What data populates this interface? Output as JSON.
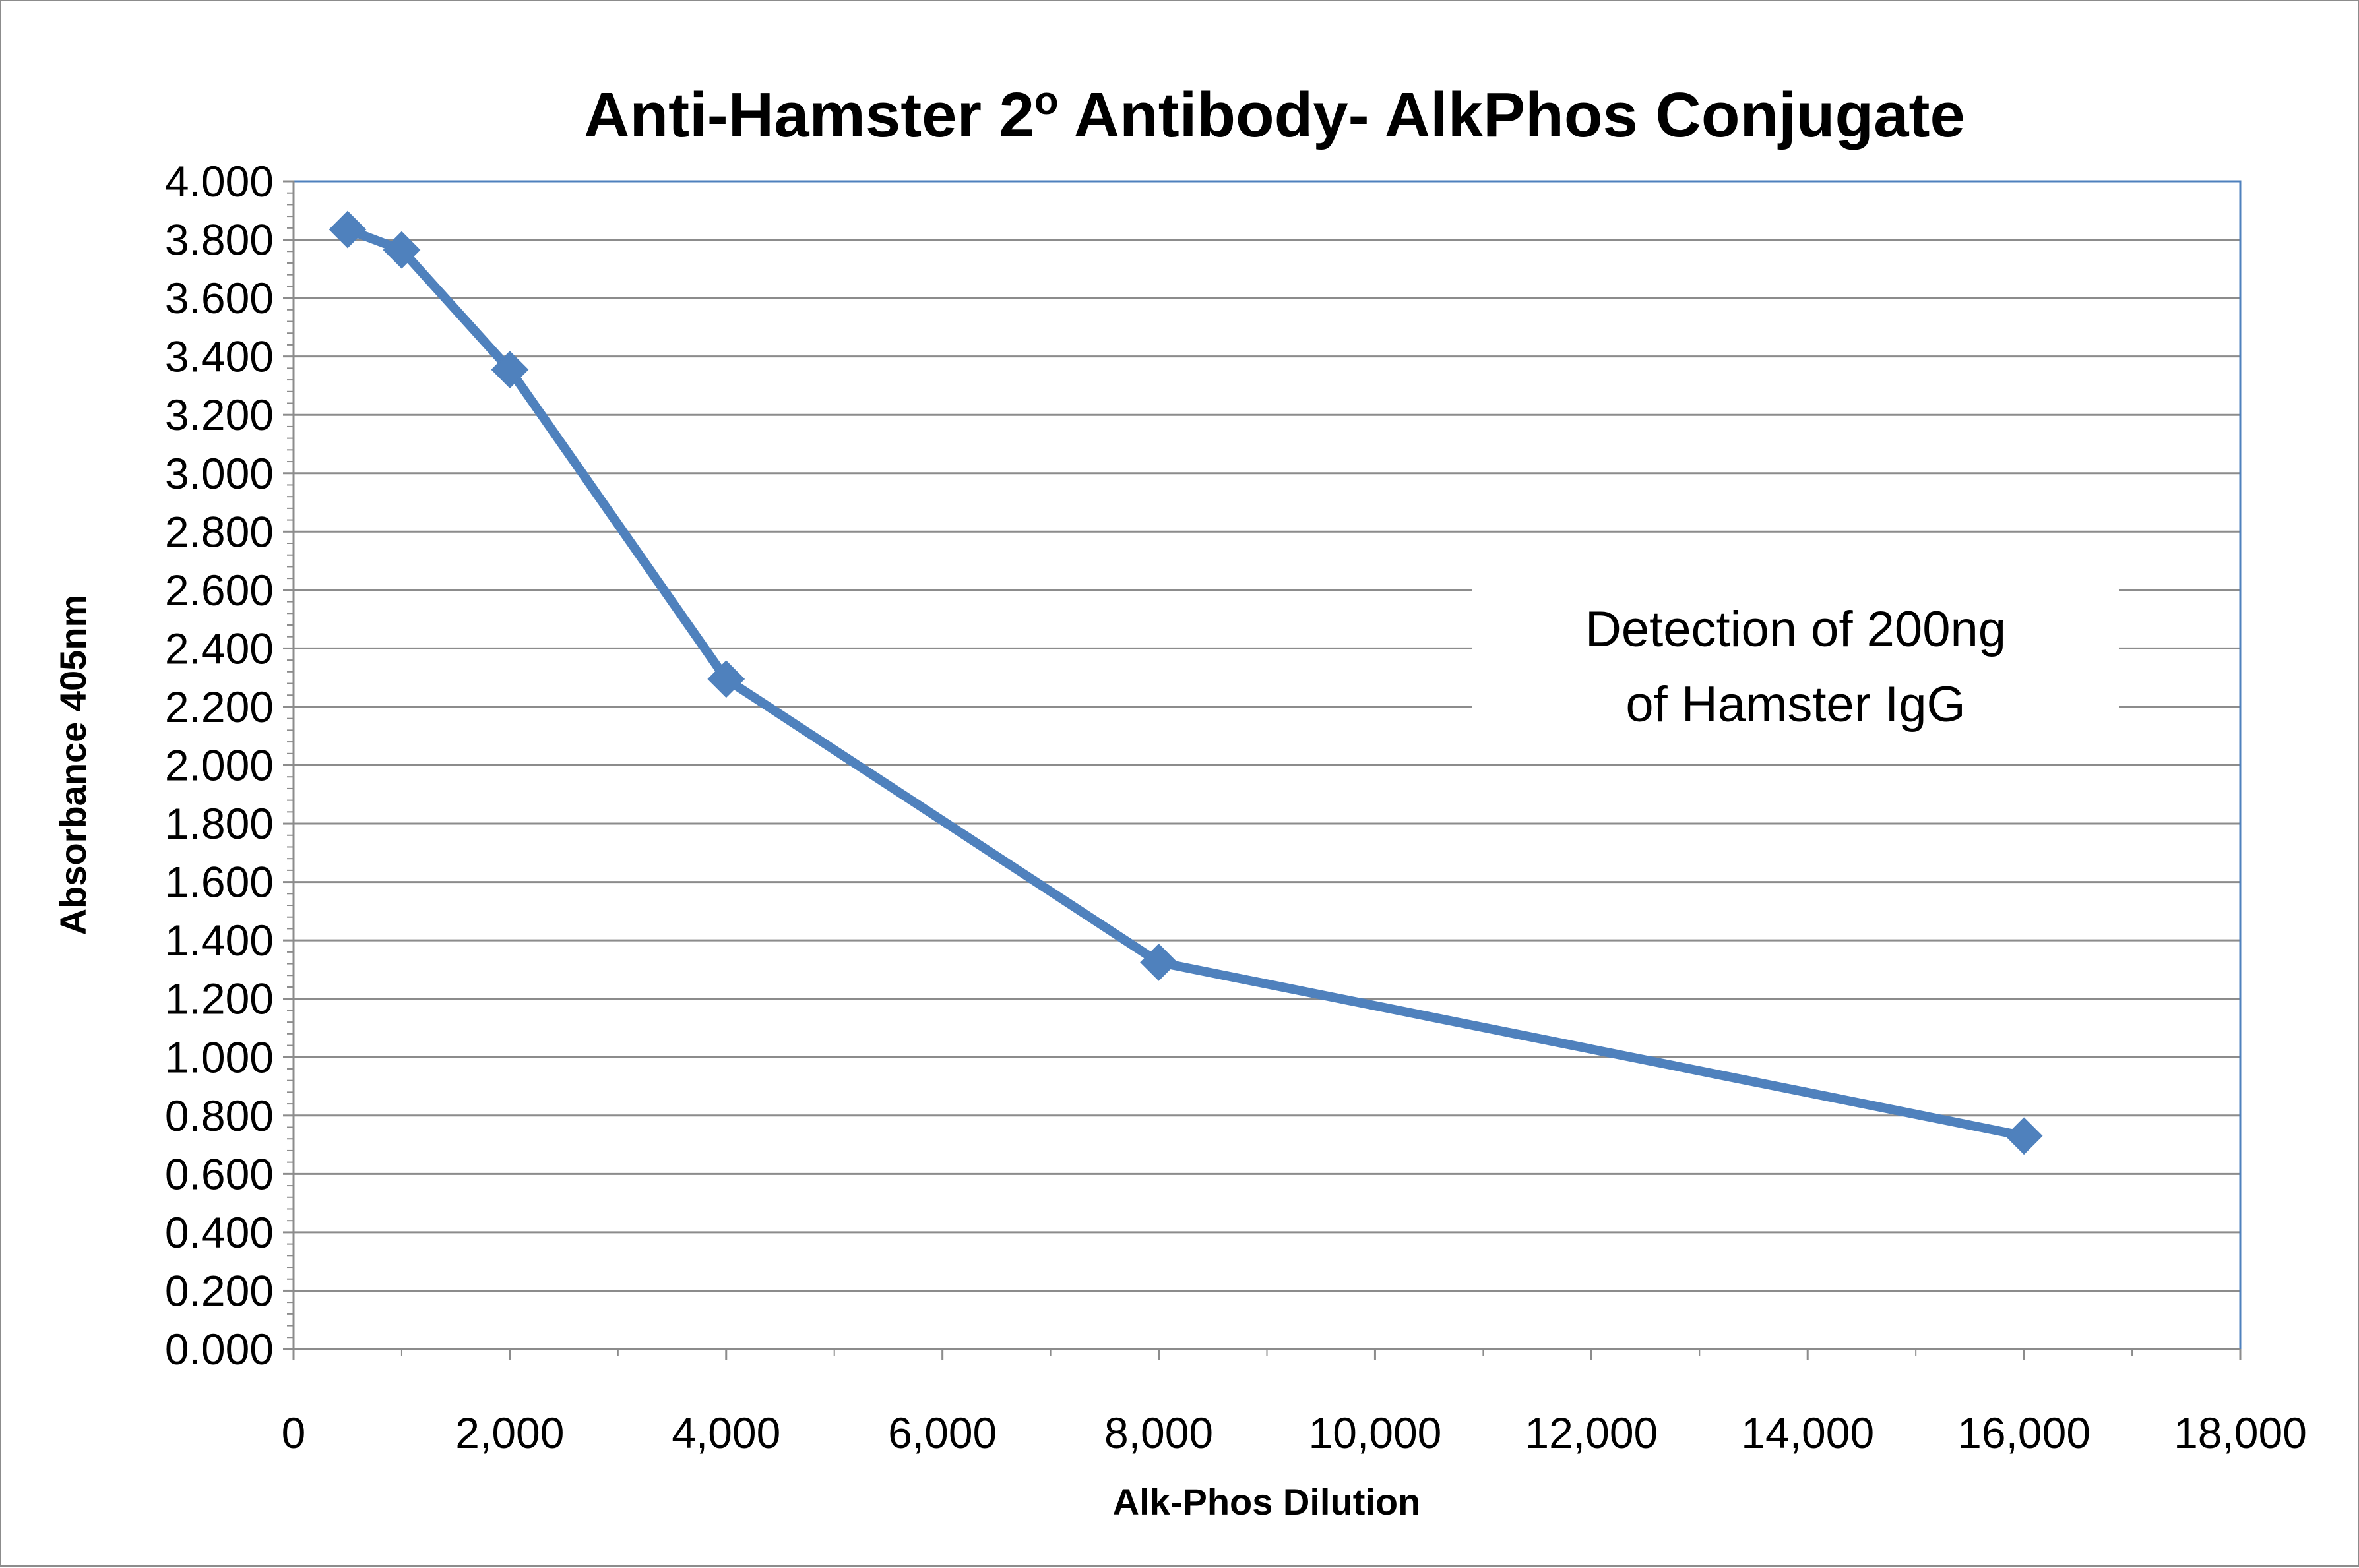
{
  "chart_data": {
    "type": "line",
    "title_main": "Anti-Hamster 2",
    "title_sup": "o",
    "title_rest": " Antibody- AlkPhos Conjugate",
    "xlabel": "Alk-Phos Dilution",
    "ylabel": "Absorbance 405nm",
    "xlim": [
      0,
      18000
    ],
    "ylim": [
      0,
      4
    ],
    "x_ticks": [
      0,
      2000,
      4000,
      6000,
      8000,
      10000,
      12000,
      14000,
      16000,
      18000
    ],
    "x_tick_labels": [
      "0",
      "2,000",
      "4,000",
      "6,000",
      "8,000",
      "10,000",
      "12,000",
      "14,000",
      "16,000",
      "18,000"
    ],
    "y_ticks": [
      0,
      0.2,
      0.4,
      0.6,
      0.8,
      1.0,
      1.2,
      1.4,
      1.6,
      1.8,
      2.0,
      2.2,
      2.4,
      2.6,
      2.8,
      3.0,
      3.2,
      3.4,
      3.6,
      3.8,
      4.0
    ],
    "y_tick_labels": [
      "0.000",
      "0.200",
      "0.400",
      "0.600",
      "0.800",
      "1.000",
      "1.200",
      "1.400",
      "1.600",
      "1.800",
      "2.000",
      "2.200",
      "2.400",
      "2.600",
      "2.800",
      "3.000",
      "3.200",
      "3.400",
      "3.600",
      "3.800",
      "4.000"
    ],
    "grid": "horizontal",
    "series": [
      {
        "x": [
          500,
          1000,
          2000,
          4000,
          8000,
          16000
        ],
        "y": [
          3.835,
          3.765,
          3.355,
          2.295,
          1.325,
          0.73
        ],
        "color": "#4f81bd",
        "marker": "diamond"
      }
    ],
    "annotation": {
      "line1": "Detection of 200ng",
      "line2": "of Hamster IgG"
    }
  }
}
